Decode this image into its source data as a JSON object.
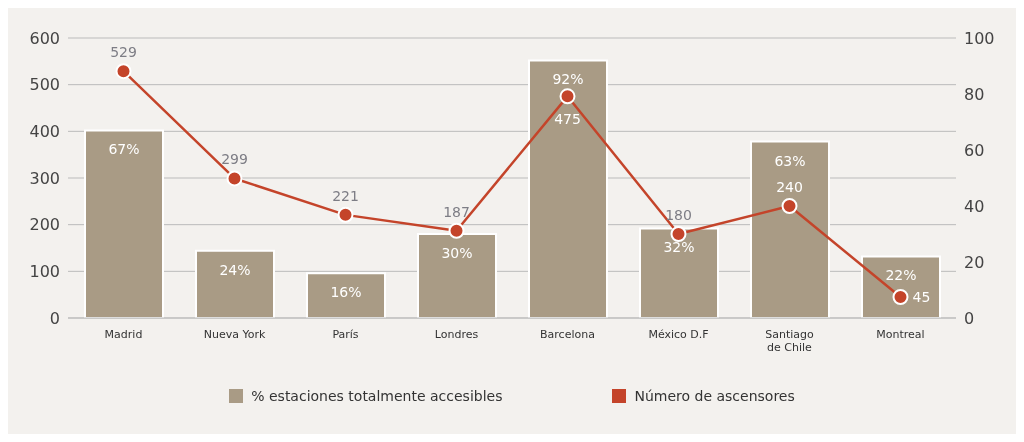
{
  "chart_data": {
    "type": "bar",
    "categories": [
      "Madrid",
      "Nueva York",
      "París",
      "Londres",
      "Barcelona",
      "México D.F",
      "Santiago de Chile",
      "Montreal"
    ],
    "series": [
      {
        "name": "% estaciones totalmente accesibles",
        "axis": "y2",
        "color": "#a99b85",
        "values": [
          67,
          24,
          16,
          30,
          92,
          32,
          63,
          22
        ],
        "value_labels": [
          "67%",
          "24%",
          "16%",
          "30%",
          "92%",
          "32%",
          "63%",
          "22%"
        ]
      },
      {
        "name": "Número de ascensores",
        "type": "line",
        "axis": "y",
        "color": "#c4442a",
        "values": [
          529,
          299,
          221,
          187,
          475,
          180,
          240,
          45
        ]
      }
    ],
    "ylim": [
      0,
      600
    ],
    "yticks": [
      0,
      100,
      200,
      300,
      400,
      500,
      600
    ],
    "y2lim": [
      0,
      100
    ],
    "y2ticks": [
      0,
      20,
      40,
      60,
      80,
      100
    ],
    "grid": "y",
    "legend": "bottom",
    "marker": "circle",
    "line_style": "solid",
    "data_labels": true
  }
}
